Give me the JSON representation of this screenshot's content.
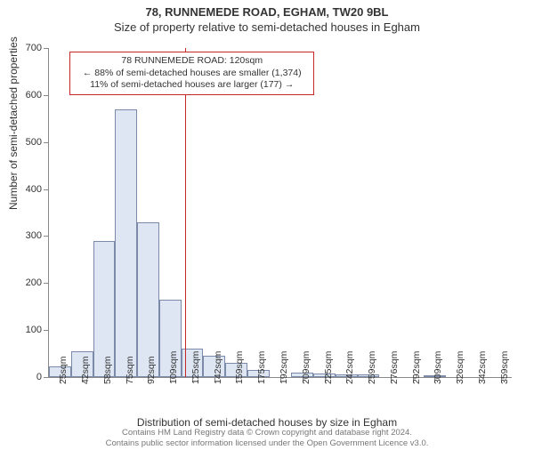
{
  "header": {
    "address": "78, RUNNEMEDE ROAD, EGHAM, TW20 9BL",
    "subtitle": "Size of property relative to semi-detached houses in Egham"
  },
  "chart": {
    "type": "histogram",
    "ylabel": "Number of semi-detached properties",
    "xlabel": "Distribution of semi-detached houses by size in Egham",
    "ylim": [
      0,
      700
    ],
    "ytick_step": 100,
    "yticks": [
      0,
      100,
      200,
      300,
      400,
      500,
      600,
      700
    ],
    "xtick_labels": [
      "25sqm",
      "42sqm",
      "58sqm",
      "75sqm",
      "92sqm",
      "109sqm",
      "125sqm",
      "142sqm",
      "159sqm",
      "175sqm",
      "192sqm",
      "209sqm",
      "225sqm",
      "242sqm",
      "259sqm",
      "276sqm",
      "292sqm",
      "309sqm",
      "326sqm",
      "342sqm",
      "359sqm"
    ],
    "bars": [
      22,
      55,
      290,
      570,
      330,
      165,
      60,
      45,
      30,
      15,
      0,
      10,
      7,
      5,
      6,
      0,
      0,
      3,
      0,
      0,
      0
    ],
    "bar_fill": "#dde6f2",
    "bar_stroke": "#7a8aa8",
    "axis_color": "#888888",
    "background_color": "#ffffff",
    "reference_line": {
      "value_sqm": 120,
      "color": "#c62828"
    },
    "info_box": {
      "line1": "78 RUNNEMEDE ROAD: 120sqm",
      "line2": "← 88% of semi-detached houses are smaller (1,374)",
      "line3": "11% of semi-detached houses are larger (177) →",
      "border_color": "#c62828"
    }
  },
  "footer": {
    "line1": "Contains HM Land Registry data © Crown copyright and database right 2024.",
    "line2": "Contains public sector information licensed under the Open Government Licence v3.0."
  }
}
